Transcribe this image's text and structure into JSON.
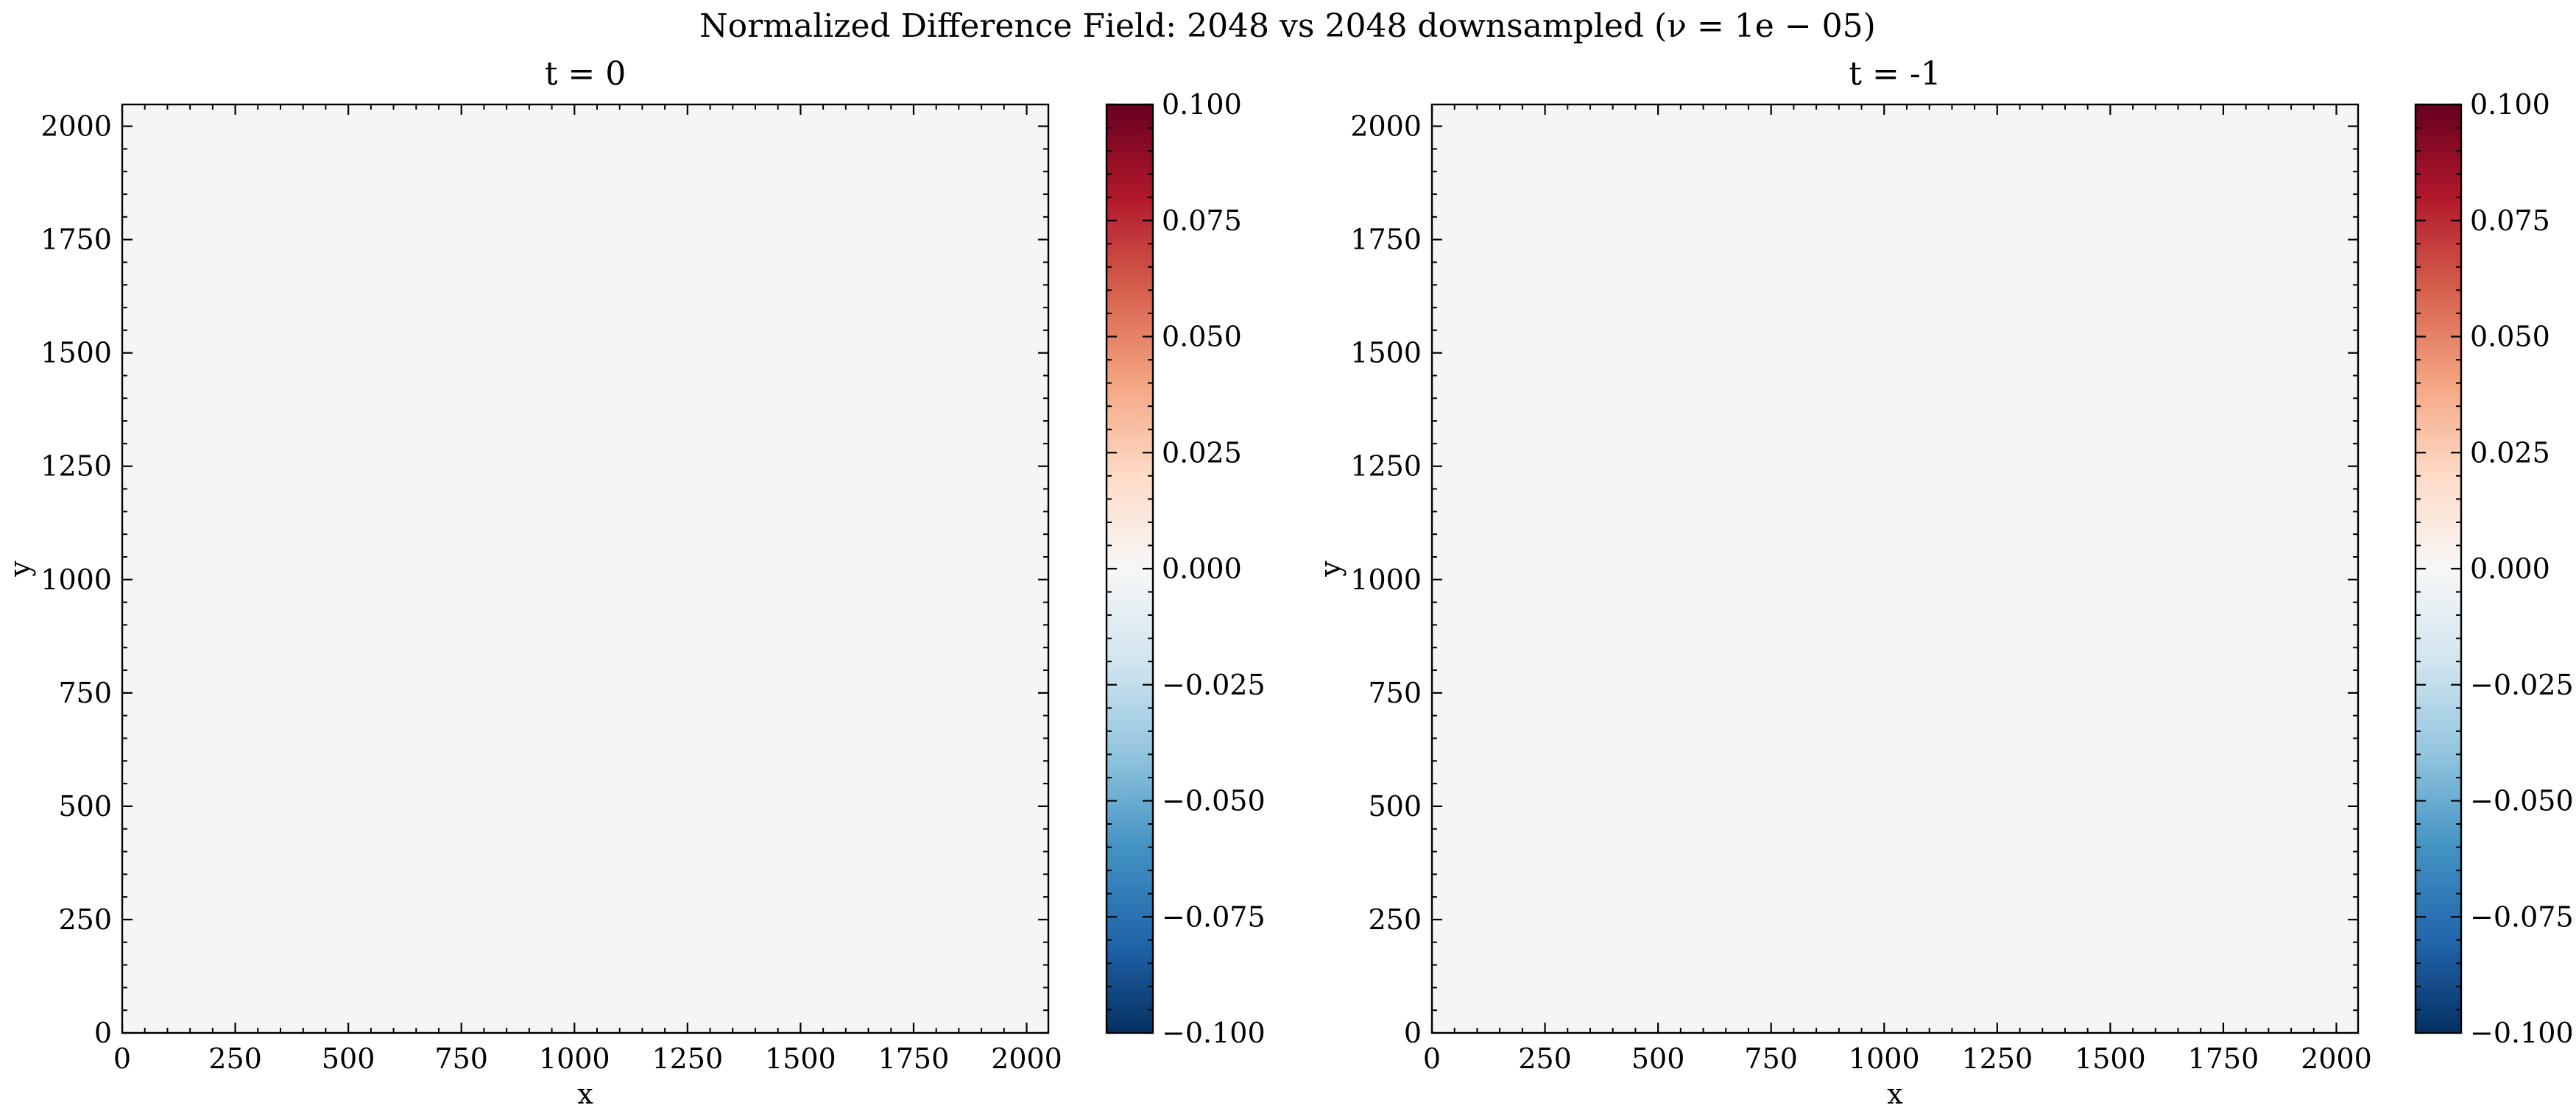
{
  "chart_data": {
    "suptitle": "Normalized Difference Field: 2048 vs 2048 downsampled (ν = 1e − 05)",
    "panels": [
      {
        "type": "heatmap",
        "title": "t = 0",
        "xlabel": "x",
        "ylabel": "y",
        "xlim": [
          0,
          2048
        ],
        "ylim": [
          0,
          2048
        ],
        "xticks": [
          "0",
          "250",
          "500",
          "750",
          "1000",
          "1250",
          "1500",
          "1750",
          "2000"
        ],
        "yticks": [
          "0",
          "250",
          "500",
          "750",
          "1000",
          "1250",
          "1500",
          "1750",
          "2000"
        ],
        "field_value": 0.0,
        "colormap": "RdBu_r",
        "field_color": "#f5f5f5",
        "colorbar": {
          "range": [
            -0.1,
            0.1
          ],
          "ticks": [
            "−0.100",
            "−0.075",
            "−0.050",
            "−0.025",
            "0.000",
            "0.025",
            "0.050",
            "0.075",
            "0.100"
          ]
        }
      },
      {
        "type": "heatmap",
        "title": "t = -1",
        "xlabel": "x",
        "ylabel": "y",
        "xlim": [
          0,
          2048
        ],
        "ylim": [
          0,
          2048
        ],
        "xticks": [
          "0",
          "250",
          "500",
          "750",
          "1000",
          "1250",
          "1500",
          "1750",
          "2000"
        ],
        "yticks": [
          "0",
          "250",
          "500",
          "750",
          "1000",
          "1250",
          "1500",
          "1750",
          "2000"
        ],
        "field_value": 0.0,
        "colormap": "RdBu_r",
        "field_color": "#f5f5f5",
        "colorbar": {
          "range": [
            -0.1,
            0.1
          ],
          "ticks": [
            "−0.100",
            "−0.075",
            "−0.050",
            "−0.025",
            "0.000",
            "0.025",
            "0.050",
            "0.075",
            "0.100"
          ]
        }
      }
    ]
  }
}
